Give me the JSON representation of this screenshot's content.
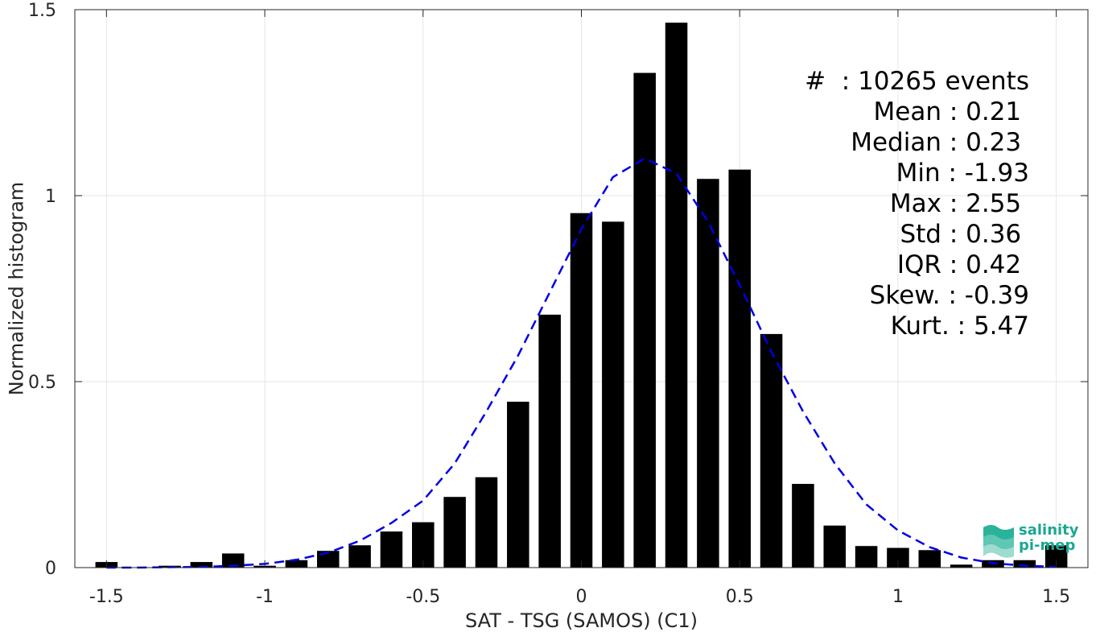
{
  "chart_data": {
    "type": "bar",
    "xlabel": "SAT - TSG (SAMOS) (C1)",
    "ylabel": "Normalized histogram",
    "xlim": [
      -1.6,
      1.6
    ],
    "ylim": [
      0,
      1.5
    ],
    "xticks": [
      -1.5,
      -1,
      -0.5,
      0,
      0.5,
      1,
      1.5
    ],
    "xtick_labels": [
      "-1.5",
      "-1",
      "-0.5",
      "0",
      "0.5",
      "1",
      "1.5"
    ],
    "yticks": [
      0,
      0.5,
      1,
      1.5
    ],
    "ytick_labels": [
      "0",
      "0.5",
      "1",
      "1.5"
    ],
    "grid": true,
    "bar_color": "#000000",
    "fit_color": "#0000e6",
    "bar_width": 0.07,
    "x": [
      -1.5,
      -1.4,
      -1.3,
      -1.2,
      -1.1,
      -1.0,
      -0.9,
      -0.8,
      -0.7,
      -0.6,
      -0.5,
      -0.4,
      -0.3,
      -0.2,
      -0.1,
      0.0,
      0.1,
      0.2,
      0.3,
      0.4,
      0.5,
      0.6,
      0.7,
      0.8,
      0.9,
      1.0,
      1.1,
      1.2,
      1.3,
      1.4,
      1.5
    ],
    "values": [
      0.015,
      0.0,
      0.005,
      0.015,
      0.038,
      0.005,
      0.02,
      0.045,
      0.06,
      0.097,
      0.122,
      0.19,
      0.243,
      0.446,
      0.68,
      0.953,
      0.93,
      1.33,
      1.465,
      1.045,
      1.07,
      0.628,
      0.225,
      0.113,
      0.058,
      0.053,
      0.047,
      0.008,
      0.02,
      0.02,
      0.06
    ],
    "fit_curve": {
      "style": "dashed",
      "x": [
        -1.5,
        -1.4,
        -1.3,
        -1.2,
        -1.1,
        -1.0,
        -0.9,
        -0.8,
        -0.7,
        -0.6,
        -0.5,
        -0.4,
        -0.3,
        -0.2,
        -0.1,
        0.0,
        0.1,
        0.2,
        0.3,
        0.4,
        0.5,
        0.6,
        0.7,
        0.8,
        0.9,
        1.0,
        1.1,
        1.2,
        1.3,
        1.4,
        1.5
      ],
      "y": [
        0.0,
        0.0,
        0.001,
        0.002,
        0.005,
        0.01,
        0.021,
        0.04,
        0.072,
        0.12,
        0.18,
        0.28,
        0.42,
        0.57,
        0.74,
        0.91,
        1.05,
        1.1,
        1.06,
        0.93,
        0.76,
        0.58,
        0.42,
        0.28,
        0.17,
        0.1,
        0.055,
        0.027,
        0.012,
        0.005,
        0.002
      ]
    },
    "stats": [
      "#  : 10265 events",
      "Mean : 0.21 ",
      "Median : 0.23 ",
      "Min : -1.93",
      "Max : 2.55 ",
      "Std : 0.36 ",
      "IQR : 0.42 ",
      "Skew. : -0.39",
      "Kurt. : 5.47"
    ],
    "logo": {
      "line1": "salinity",
      "line2": "pi-mep"
    }
  }
}
